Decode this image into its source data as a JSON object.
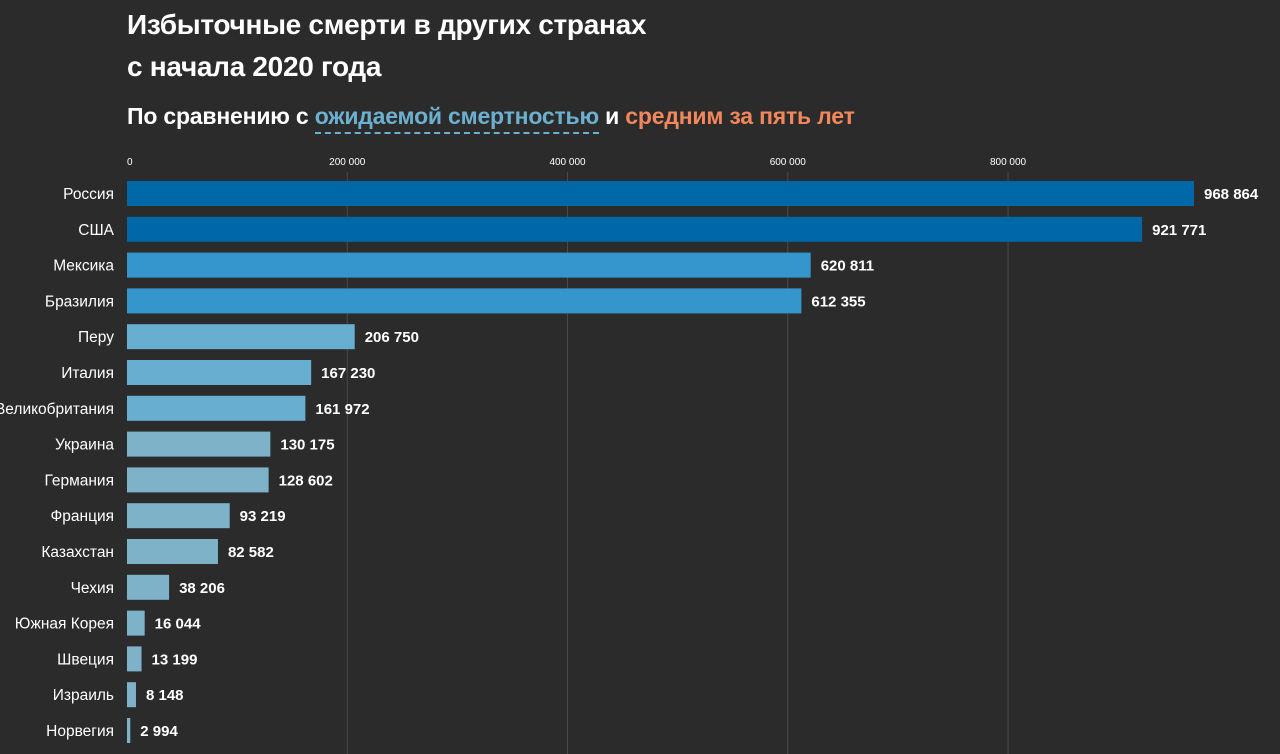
{
  "header": {
    "title_line1": "Избыточные смерти в других странах",
    "title_line2": "с начала 2020 года",
    "subtitle_prefix": "По сравнению с",
    "subtitle_expected": "ожидаемой смертностью",
    "subtitle_and": "и",
    "subtitle_average": "средним за пять лет"
  },
  "colors": {
    "background": "#2b2b2b",
    "expected": "#6cb0cf",
    "average": "#f2875c"
  },
  "chart_data": {
    "type": "bar",
    "orientation": "horizontal",
    "title": "Избыточные смерти в других странах с начала 2020 года",
    "subtitle": "По сравнению с ожидаемой смертностью и средним за пять лет",
    "xlabel": "",
    "ylabel": "",
    "xlim": [
      0,
      968864
    ],
    "x_ticks": [
      0,
      200000,
      400000,
      600000,
      800000
    ],
    "x_tick_labels": [
      "0",
      "200 000",
      "400 000",
      "600 000",
      "800 000"
    ],
    "grid": true,
    "categories": [
      "Россия",
      "США",
      "Мексика",
      "Бразилия",
      "Перу",
      "Италия",
      "Великобритания",
      "Украина",
      "Германия",
      "Франция",
      "Казахстан",
      "Чехия",
      "Южная Корея",
      "Швеция",
      "Израиль",
      "Норвегия"
    ],
    "values": [
      968864,
      921771,
      620811,
      612355,
      206750,
      167230,
      161972,
      130175,
      128602,
      93219,
      82582,
      38206,
      16044,
      13199,
      8148,
      2994
    ],
    "value_labels": [
      "968 864",
      "921 771",
      "620 811",
      "612 355",
      "206 750",
      "167 230",
      "161 972",
      "130 175",
      "128 602",
      "93 219",
      "82 582",
      "38 206",
      "16 044",
      "13 199",
      "8 148",
      "2 994"
    ],
    "bar_colors": [
      "#0168a8",
      "#0168a8",
      "#3595cd",
      "#3595cd",
      "#67aed0",
      "#67aed0",
      "#67aed0",
      "#7eb2c8",
      "#7eb2c8",
      "#7eb2c8",
      "#7eb2c8",
      "#7eb2c8",
      "#7eb2c8",
      "#7eb2c8",
      "#7eb2c8",
      "#7eb2c8"
    ]
  }
}
